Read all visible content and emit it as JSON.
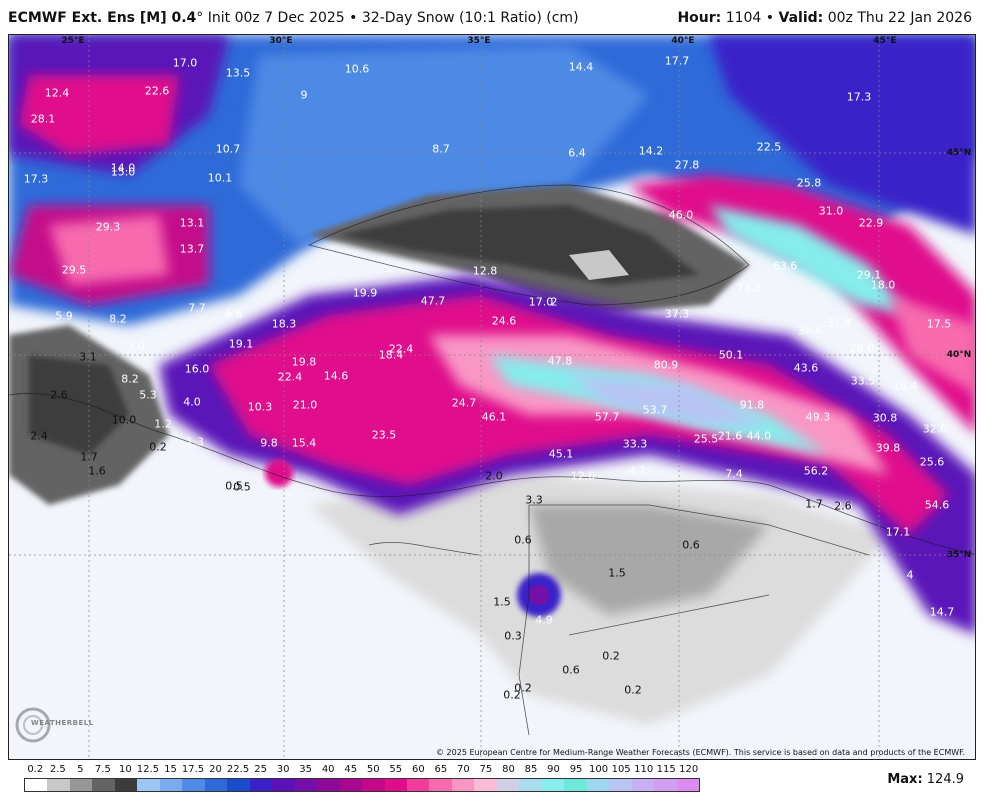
{
  "header": {
    "model": "ECMWF Ext. Ens [M] 0.4",
    "degree": "°",
    "init": " Init 00z 7 Dec 2025",
    "bullet": " • ",
    "product": "32-Day Snow (10:1 Ratio) (cm)",
    "hour_label": "Hour:",
    "hour_value": " 1104",
    "valid_label": "Valid:",
    "valid_value": " 00z Thu 22 Jan 2026"
  },
  "map": {
    "lat_lon_labels": [
      "25°E",
      "30°E",
      "35°E",
      "40°E",
      "45°E",
      "45°N",
      "40°N",
      "35°N"
    ],
    "white_values": [
      "12.4",
      "28.1",
      "17.0",
      "13.5",
      "22.6",
      "10.6",
      "14.4",
      "17.7",
      "17.3",
      "9",
      "8.7",
      "6.4",
      "14.2",
      "22.5",
      "10.7",
      "14.0",
      "15.0",
      "10.1",
      "17.3",
      "27.8",
      "25.8",
      "31.0",
      "46.0",
      "22.9",
      "13.1",
      "29.3",
      "13.7",
      "29.5",
      "12.8",
      "63.6",
      "29.1",
      "18.0",
      "73.8",
      "19.9",
      "47.7",
      "17.0",
      "2",
      "24.6",
      "37.3",
      "36.6",
      "31.4",
      "17.5",
      "7.7",
      "6.6",
      "5.9",
      "8.2",
      "18.3",
      "19.1",
      "22.4",
      "47.8",
      "50.1",
      "28.0",
      "3.0",
      "16.0",
      "19.8",
      "18.4",
      "14.6",
      "80.9",
      "43.6",
      "33.5",
      "18.4",
      "22.4",
      "4.0",
      "10.3",
      "21.0",
      "24.7",
      "46.1",
      "57.7",
      "53.7",
      "91.8",
      "49.3",
      "30.8",
      "32.0",
      "9.8",
      "15.4",
      "23.5",
      "33.3",
      "25.5",
      "21.6",
      "44.0",
      "39.8",
      "25.6",
      "45.1",
      "12.0",
      "4.7",
      "7.4",
      "56.2",
      "2.6",
      "17.1",
      "54.6",
      "4",
      "14.7",
      "4.9",
      "1.2",
      "1.3",
      "5.3",
      "8.2"
    ],
    "dark_values": [
      "3.1",
      "2.6",
      "0.5",
      "2.0",
      "3.3",
      "1.7",
      "2.6",
      "0.6",
      "0.6",
      "1.5",
      "1.5",
      "0.3",
      "0.6",
      "0.2",
      "0.2",
      "0.2",
      "0.2",
      "0.2",
      "10.0",
      "2.4",
      "1.7",
      "1.6",
      "0.5"
    ],
    "credit": "© 2025 European Centre for Medium-Range Weather Forecasts (ECMWF). This service is based on data and products of the ECMWF.",
    "logo_text": "WEATHERBELL"
  },
  "legend": {
    "ticks": [
      "0.2",
      "2.5",
      "5",
      "7.5",
      "10",
      "12.5",
      "15",
      "17.5",
      "20",
      "22.5",
      "25",
      "30",
      "35",
      "40",
      "45",
      "50",
      "55",
      "60",
      "65",
      "70",
      "75",
      "80",
      "85",
      "90",
      "95",
      "100",
      "105",
      "110",
      "115",
      "120"
    ],
    "colors": [
      "#ffffff",
      "#c8c8c8",
      "#969696",
      "#646464",
      "#3c3c3c",
      "#9ec6f5",
      "#7aaaf0",
      "#4e8ae6",
      "#2f6ad8",
      "#1a4ccc",
      "#3b20c8",
      "#5a12b8",
      "#7410a8",
      "#8c0a98",
      "#a80890",
      "#c4088a",
      "#e00c8c",
      "#f23c9c",
      "#f76aae",
      "#f996c4",
      "#fbbcd8",
      "#cfcfe8",
      "#a8dcec",
      "#86ecec",
      "#6ee8d8",
      "#9ed8f0",
      "#b8c4f4",
      "#c8b0f4",
      "#d29ef2",
      "#dc8cf0"
    ],
    "max_label": "Max:",
    "max_value": " 124.9"
  }
}
